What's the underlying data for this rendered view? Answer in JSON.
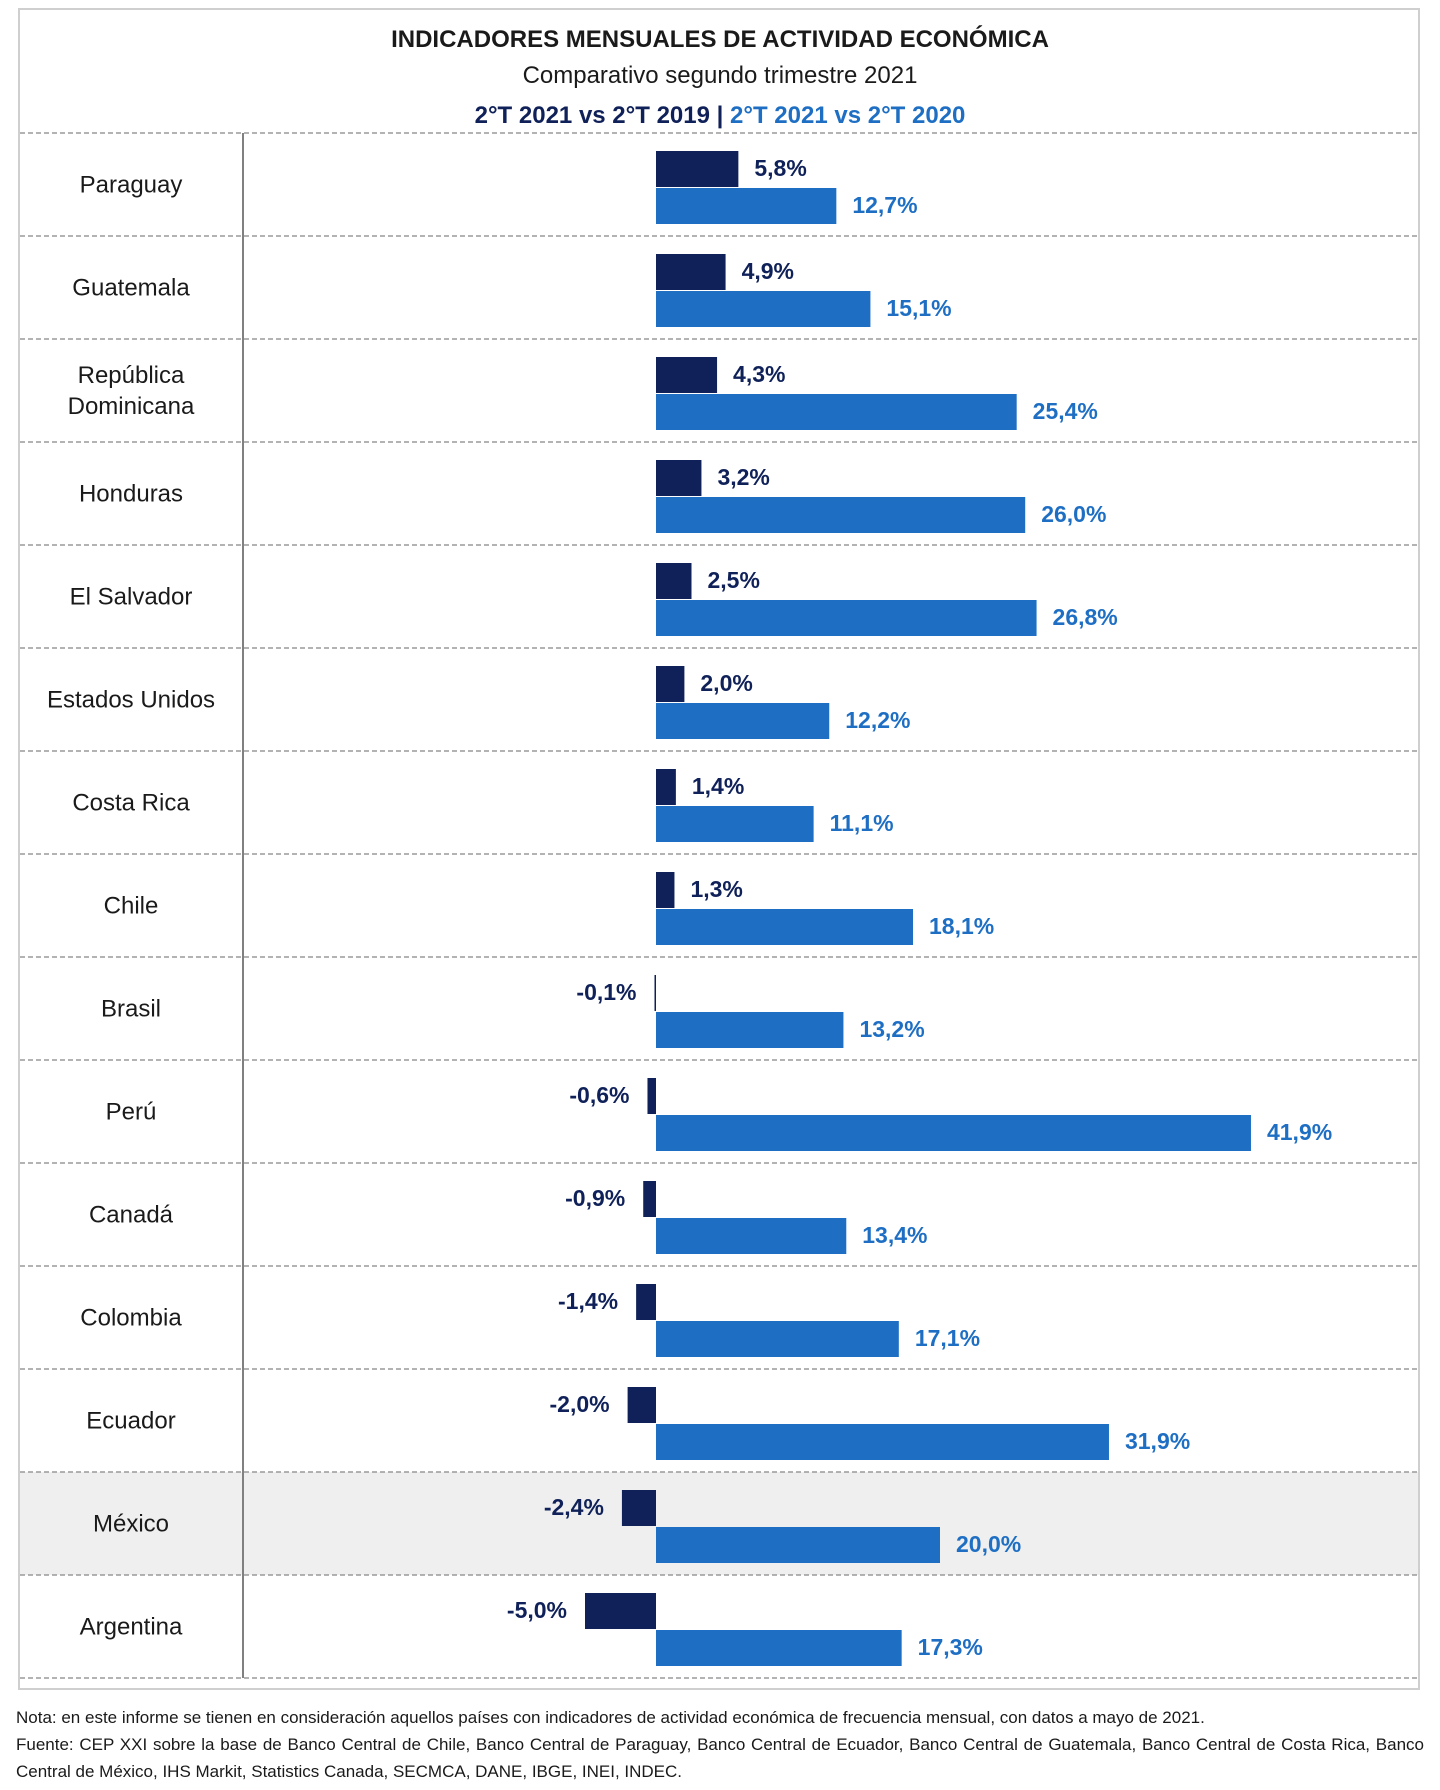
{
  "title": "INDICADORES MENSUALES DE ACTIVIDAD ECONÓMICA",
  "subtitle": "Comparativo segundo trimestre 2021",
  "legend": {
    "series1": "2°T 2021 vs 2°T 2019",
    "separator": "|",
    "series2": "2°T 2021 vs 2°T 2020"
  },
  "colors": {
    "series1": "#0f2158",
    "series2": "#1e6fc4",
    "grid": "#9a9a9a",
    "highlight": "#efefef"
  },
  "chart_data": {
    "type": "bar",
    "orientation": "horizontal",
    "title": "INDICADORES MENSUALES DE ACTIVIDAD ECONÓMICA",
    "subtitle": "Comparativo segundo trimestre 2021",
    "unit": "%",
    "categories": [
      "Paraguay",
      "Guatemala",
      "República Dominicana",
      "Honduras",
      "El Salvador",
      "Estados Unidos",
      "Costa Rica",
      "Chile",
      "Brasil",
      "Perú",
      "Canadá",
      "Colombia",
      "Ecuador",
      "México",
      "Argentina"
    ],
    "category_lines": [
      [
        "Paraguay"
      ],
      [
        "Guatemala"
      ],
      [
        "República",
        "Dominicana"
      ],
      [
        "Honduras"
      ],
      [
        "El Salvador"
      ],
      [
        "Estados Unidos"
      ],
      [
        "Costa Rica"
      ],
      [
        "Chile"
      ],
      [
        "Brasil"
      ],
      [
        "Perú"
      ],
      [
        "Canadá"
      ],
      [
        "Colombia"
      ],
      [
        "Ecuador"
      ],
      [
        "México"
      ],
      [
        "Argentina"
      ]
    ],
    "highlighted_category": "México",
    "series": [
      {
        "name": "2°T 2021 vs 2°T 2019",
        "values": [
          5.8,
          4.9,
          4.3,
          3.2,
          2.5,
          2.0,
          1.4,
          1.3,
          -0.1,
          -0.6,
          -0.9,
          -1.4,
          -2.0,
          -2.4,
          -5.0
        ],
        "labels": [
          "5,8%",
          "4,9%",
          "4,3%",
          "3,2%",
          "2,5%",
          "2,0%",
          "1,4%",
          "1,3%",
          "-0,1%",
          "-0,6%",
          "-0,9%",
          "-1,4%",
          "-2,0%",
          "-2,4%",
          "-5,0%"
        ]
      },
      {
        "name": "2°T 2021 vs 2°T 2020",
        "values": [
          12.7,
          15.1,
          25.4,
          26.0,
          26.8,
          12.2,
          11.1,
          18.1,
          13.2,
          41.9,
          13.4,
          17.1,
          31.9,
          20.0,
          17.3
        ],
        "labels": [
          "12,7%",
          "15,1%",
          "25,4%",
          "26,0%",
          "26,8%",
          "12,2%",
          "11,1%",
          "18,1%",
          "13,2%",
          "41,9%",
          "13,4%",
          "17,1%",
          "31,9%",
          "20,0%",
          "17,3%"
        ]
      }
    ]
  },
  "notes": {
    "nota": "Nota: en este informe se tienen en consideración aquellos países con indicadores de actividad económica de frecuencia mensual, con datos a mayo de 2021.",
    "fuente": "Fuente: CEP XXI sobre la base de Banco Central de Chile, Banco Central de Paraguay, Banco Central de Ecuador, Banco Central de Guatemala, Banco Central de Costa Rica, Banco Central de México, IHS Markit, Statistics Canada, SECMCA, DANE, IBGE, INEI, INDEC."
  }
}
